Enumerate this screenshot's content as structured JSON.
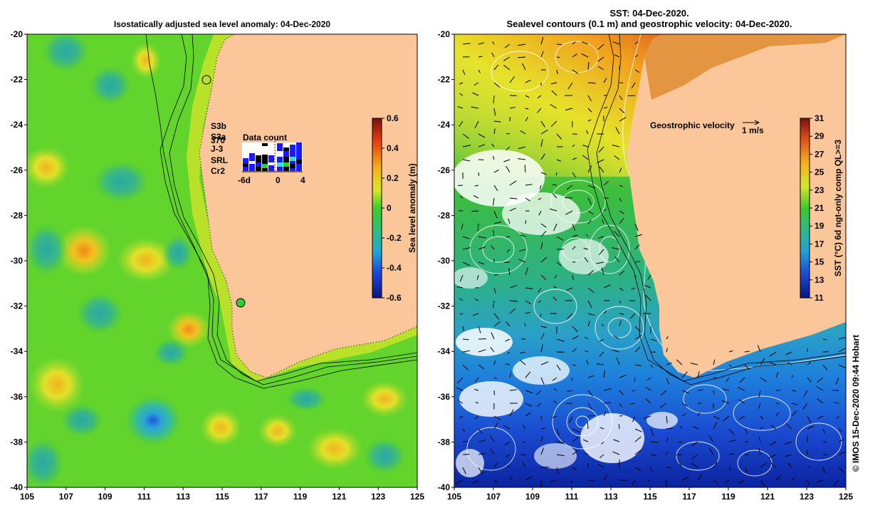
{
  "left_panel": {
    "title": "Isostatically adjusted sea level anomaly: 04-Dec-2020",
    "x_ticks": [
      "105",
      "107",
      "109",
      "111",
      "113",
      "115",
      "117",
      "119",
      "121",
      "123",
      "125"
    ],
    "y_ticks": [
      "-20",
      "-22",
      "-24",
      "-26",
      "-28",
      "-30",
      "-32",
      "-34",
      "-36",
      "-38",
      "-40"
    ],
    "colorbar": {
      "label": "Sea level anomaly (m)",
      "ticks": [
        "0.6",
        "0.4",
        "0.2",
        "0",
        "-0.2",
        "-0.4",
        "-0.6"
      ]
    },
    "satellites": [
      {
        "name": "S3b",
        "color": "#1a1aff"
      },
      {
        "name": "S3a",
        "color": "#ffffff"
      },
      {
        "name": "370",
        "color": "#000000"
      },
      {
        "name": "J-3",
        "color": "#000000"
      },
      {
        "name": "SRL",
        "color": "#33e0e0"
      },
      {
        "name": "Cr2",
        "color": "#33cc33"
      }
    ],
    "data_count": {
      "label": "Data count",
      "x_ticks": [
        "-6d",
        "0",
        "4"
      ]
    }
  },
  "right_panel": {
    "title_line1": "SST: 04-Dec-2020.",
    "title_line2": "Sealevel contours (0.1 m) and geostrophic velocity: 04-Dec-2020.",
    "x_ticks": [
      "105",
      "107",
      "109",
      "111",
      "113",
      "115",
      "117",
      "119",
      "121",
      "123",
      "125"
    ],
    "y_ticks": [
      "-20",
      "-22",
      "-24",
      "-26",
      "-28",
      "-30",
      "-32",
      "-34",
      "-36",
      "-38",
      "-40"
    ],
    "velocity_legend": {
      "label": "Geostrophic velocity",
      "scale": "1 m/s"
    },
    "colorbar": {
      "label": "SST (°C) 6d ngt-only comp QL>=3",
      "ticks": [
        "31",
        "29",
        "27",
        "25",
        "23",
        "21",
        "19",
        "17",
        "15",
        "13",
        "11"
      ]
    }
  },
  "credit": "© IMOS 15-Dec-2020 09:44 Hobart",
  "colors": {
    "land": "#fbc79a",
    "sla_green": "#5fd62e",
    "sla_yellow": "#d9e62a",
    "sla_teal": "#36b39a",
    "sst_green": "#3bbb4a",
    "sst_blue": "#1f74d6",
    "sst_deep": "#0a2ca0"
  }
}
